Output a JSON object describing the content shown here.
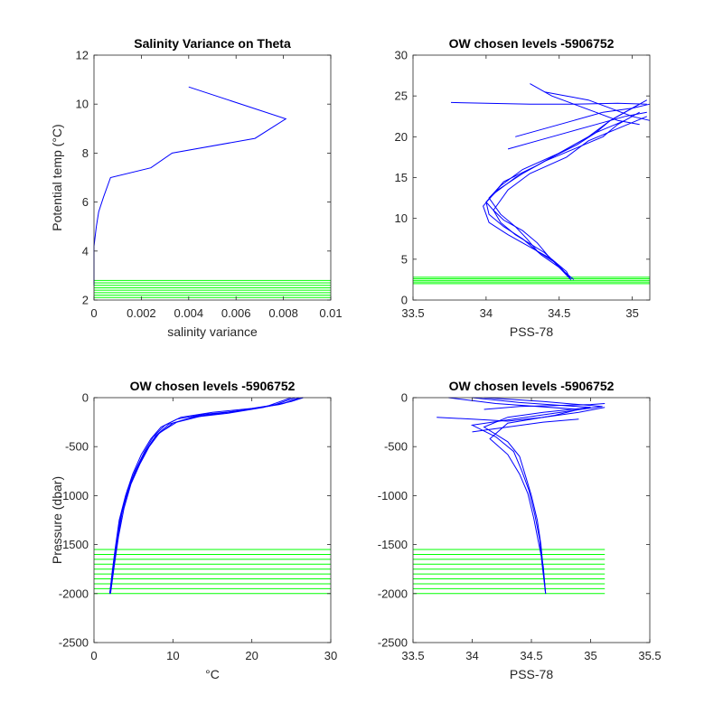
{
  "chart_data": [
    {
      "type": "line",
      "title": "Salinity Variance on Theta",
      "xlabel": "salinity variance",
      "ylabel": "Potential temp (°C)",
      "xlim": [
        0,
        0.01
      ],
      "ylim": [
        2,
        12
      ],
      "x_ticks": [
        "0",
        "0.002",
        "0.004",
        "0.006",
        "0.008",
        "0.01"
      ],
      "y_ticks": [
        "2",
        "4",
        "6",
        "8",
        "10",
        "12"
      ],
      "line_color": "#0000ff",
      "level_color": "#00ff00",
      "series": [
        {
          "x": [
            0.0,
            0.0,
            0.0,
            0.0001,
            0.0002,
            0.0004,
            0.0007,
            0.0024,
            0.0033,
            0.0068,
            0.0081,
            0.004
          ],
          "y": [
            2.6,
            3.3,
            4.2,
            5.0,
            5.6,
            6.2,
            7.0,
            7.4,
            8.0,
            8.6,
            9.4,
            10.7
          ]
        }
      ],
      "levels": [
        2.1,
        2.2,
        2.3,
        2.4,
        2.5,
        2.6,
        2.7,
        2.8
      ],
      "levels_xrange": [
        0,
        0.01
      ]
    },
    {
      "type": "line",
      "title": "OW chosen levels -5906752",
      "xlabel": "PSS-78",
      "ylabel": "",
      "xlim": [
        33.5,
        35.12
      ],
      "ylim": [
        0,
        30
      ],
      "x_ticks": [
        "33.5",
        "34",
        "34.5",
        "35"
      ],
      "y_ticks": [
        "0",
        "5",
        "10",
        "15",
        "20",
        "25",
        "30"
      ],
      "line_color": "#0000ff",
      "level_color": "#00ff00",
      "series": [
        {
          "x": [
            34.58,
            34.5,
            34.42,
            34.35,
            34.25,
            34.12,
            34.05,
            34.0,
            34.08,
            34.25,
            34.45,
            34.62,
            34.75,
            34.85,
            34.95,
            35.05
          ],
          "y": [
            2.5,
            4.0,
            5.5,
            7.0,
            8.5,
            9.8,
            11.0,
            12.0,
            13.5,
            15.5,
            17.5,
            19.0,
            20.5,
            22.0,
            23.0,
            24.0
          ]
        },
        {
          "x": [
            34.58,
            34.55,
            34.45,
            34.3,
            34.15,
            34.02,
            33.98,
            34.05,
            34.2,
            34.4,
            34.6,
            34.8,
            34.9,
            35.05
          ],
          "y": [
            2.5,
            3.5,
            5.0,
            6.5,
            8.0,
            9.5,
            11.5,
            13.0,
            15.0,
            17.0,
            18.5,
            20.0,
            21.5,
            23.0
          ]
        },
        {
          "x": [
            34.58,
            34.52,
            34.4,
            34.2,
            34.1,
            34.05,
            34.15,
            34.3,
            34.55,
            34.7,
            34.9,
            35.1
          ],
          "y": [
            2.5,
            3.8,
            5.8,
            8.0,
            9.5,
            11.0,
            13.5,
            15.5,
            17.5,
            19.5,
            21.0,
            22.5
          ]
        },
        {
          "x": [
            34.58,
            34.48,
            34.35,
            34.28,
            34.2,
            34.1,
            34.02,
            34.1,
            34.25,
            34.5,
            34.7,
            34.85,
            35.0,
            35.1
          ],
          "y": [
            2.5,
            4.5,
            6.0,
            7.5,
            9.0,
            10.5,
            12.5,
            14.0,
            16.0,
            18.0,
            20.0,
            22.0,
            23.5,
            24.5
          ]
        },
        {
          "x": [
            34.6,
            34.5,
            34.38,
            34.25,
            34.12,
            34.02,
            34.0,
            34.12,
            34.35,
            34.55,
            34.75,
            34.95
          ],
          "y": [
            2.5,
            4.0,
            5.5,
            7.5,
            9.0,
            10.5,
            12.0,
            14.5,
            16.5,
            18.5,
            20.5,
            22.0
          ]
        },
        {
          "x": [
            34.2,
            34.4,
            34.6,
            34.8,
            35.0,
            35.12
          ],
          "y": [
            20.0,
            21.0,
            22.0,
            23.0,
            23.5,
            24.0
          ]
        },
        {
          "x": [
            33.76,
            34.0,
            34.3,
            34.6,
            34.9,
            35.1
          ],
          "y": [
            24.2,
            24.1,
            24.0,
            24.0,
            24.1,
            24.0
          ]
        },
        {
          "x": [
            34.4,
            34.55,
            34.7,
            34.85,
            35.0,
            35.12
          ],
          "y": [
            25.5,
            25.0,
            24.5,
            23.5,
            22.5,
            22.0
          ]
        },
        {
          "x": [
            34.3,
            34.45,
            34.6,
            34.75,
            34.9,
            35.05
          ],
          "y": [
            26.5,
            25.0,
            24.0,
            23.0,
            22.0,
            21.5
          ]
        },
        {
          "x": [
            34.15,
            34.35,
            34.55,
            34.75,
            34.95,
            35.1
          ],
          "y": [
            18.5,
            19.5,
            20.5,
            21.5,
            22.5,
            23.0
          ]
        }
      ],
      "levels": [
        2.0,
        2.2,
        2.4,
        2.6,
        2.8
      ],
      "levels_xrange": [
        33.5,
        35.12
      ]
    },
    {
      "type": "line",
      "title": "OW chosen levels -5906752",
      "xlabel": "°C",
      "ylabel": "Pressure (dbar)",
      "xlim": [
        0,
        30
      ],
      "ylim": [
        -2500,
        0
      ],
      "x_ticks": [
        "0",
        "10",
        "20",
        "30"
      ],
      "y_ticks": [
        "-2500",
        "-2000",
        "-1500",
        "-1000",
        "-500",
        "0"
      ],
      "line_color": "#0000ff",
      "level_color": "#00ff00",
      "series": [
        {
          "x": [
            2.0,
            2.4,
            2.8,
            3.4,
            4.2,
            5.2,
            6.4,
            7.5,
            9.0,
            11.0,
            15.0,
            20.0,
            24.0,
            26.0
          ],
          "y": [
            -2000,
            -1750,
            -1500,
            -1200,
            -950,
            -750,
            -550,
            -400,
            -280,
            -200,
            -150,
            -110,
            -60,
            0
          ]
        },
        {
          "x": [
            2.0,
            2.5,
            3.0,
            3.6,
            4.5,
            5.6,
            6.8,
            8.0,
            10.0,
            13.0,
            18.0,
            22.0,
            25.0,
            26.5
          ],
          "y": [
            -2000,
            -1700,
            -1450,
            -1150,
            -900,
            -700,
            -520,
            -380,
            -260,
            -190,
            -140,
            -90,
            -40,
            0
          ]
        },
        {
          "x": [
            2.0,
            2.3,
            2.7,
            3.2,
            4.0,
            4.9,
            6.0,
            7.2,
            8.5,
            10.5,
            14.0,
            19.0,
            23.0,
            25.5
          ],
          "y": [
            -2000,
            -1780,
            -1530,
            -1250,
            -1000,
            -780,
            -580,
            -420,
            -300,
            -220,
            -170,
            -130,
            -70,
            0
          ]
        },
        {
          "x": [
            2.1,
            2.6,
            3.1,
            3.8,
            4.7,
            5.8,
            7.0,
            8.3,
            10.5,
            14.0,
            19.5,
            23.5,
            26.5
          ],
          "y": [
            -2000,
            -1700,
            -1420,
            -1130,
            -880,
            -680,
            -500,
            -360,
            -250,
            -180,
            -120,
            -70,
            0
          ]
        },
        {
          "x": [
            2.0,
            2.4,
            2.9,
            3.5,
            4.4,
            5.4,
            6.6,
            7.8,
            9.5,
            12.5,
            17.0,
            21.5,
            25.0
          ],
          "y": [
            -2000,
            -1740,
            -1480,
            -1190,
            -930,
            -730,
            -540,
            -390,
            -270,
            -200,
            -160,
            -100,
            0
          ]
        }
      ],
      "levels": [
        -2000,
        -1950,
        -1900,
        -1850,
        -1800,
        -1750,
        -1700,
        -1650,
        -1600,
        -1550
      ],
      "levels_xrange": [
        0,
        30
      ]
    },
    {
      "type": "line",
      "title": "OW chosen levels -5906752",
      "xlabel": "PSS-78",
      "ylabel": "",
      "xlim": [
        33.5,
        35.5
      ],
      "ylim": [
        -2500,
        0
      ],
      "x_ticks": [
        "33.5",
        "34",
        "34.5",
        "35",
        "35.5"
      ],
      "y_ticks": [
        "-2500",
        "-2000",
        "-1500",
        "-1000",
        "-500",
        "0"
      ],
      "line_color": "#0000ff",
      "level_color": "#00ff00",
      "series": [
        {
          "x": [
            34.62,
            34.6,
            34.58,
            34.55,
            34.5,
            34.45,
            34.4,
            34.3,
            34.1,
            34.3,
            34.6,
            35.0,
            34.4,
            34.0
          ],
          "y": [
            -2000,
            -1750,
            -1500,
            -1250,
            -1000,
            -800,
            -600,
            -450,
            -300,
            -200,
            -150,
            -100,
            -50,
            0
          ]
        },
        {
          "x": [
            34.62,
            34.59,
            34.57,
            34.53,
            34.48,
            34.42,
            34.35,
            34.2,
            34.0,
            34.4,
            34.8,
            35.1,
            34.6,
            34.1
          ],
          "y": [
            -2000,
            -1700,
            -1450,
            -1200,
            -950,
            -750,
            -550,
            -400,
            -280,
            -210,
            -140,
            -90,
            -40,
            0
          ]
        },
        {
          "x": [
            34.62,
            34.6,
            34.56,
            34.52,
            34.47,
            34.4,
            34.3,
            34.15,
            34.3,
            34.7,
            34.9,
            34.2,
            33.8
          ],
          "y": [
            -2000,
            -1720,
            -1480,
            -1230,
            -980,
            -780,
            -580,
            -420,
            -260,
            -180,
            -120,
            -60,
            0
          ]
        },
        {
          "x": [
            33.7,
            34.0,
            34.3,
            34.6,
            34.9,
            35.12
          ],
          "y": [
            -200,
            -220,
            -240,
            -200,
            -150,
            -100
          ]
        },
        {
          "x": [
            34.1,
            34.4,
            34.7,
            35.0,
            35.12
          ],
          "y": [
            -120,
            -90,
            -80,
            -70,
            -60
          ]
        },
        {
          "x": [
            34.0,
            34.3,
            34.6,
            34.9
          ],
          "y": [
            -350,
            -300,
            -250,
            -220
          ]
        }
      ],
      "levels": [
        -2000,
        -1950,
        -1900,
        -1850,
        -1800,
        -1750,
        -1700,
        -1650,
        -1600,
        -1550
      ],
      "levels_xrange": [
        33.5,
        35.12
      ]
    }
  ]
}
